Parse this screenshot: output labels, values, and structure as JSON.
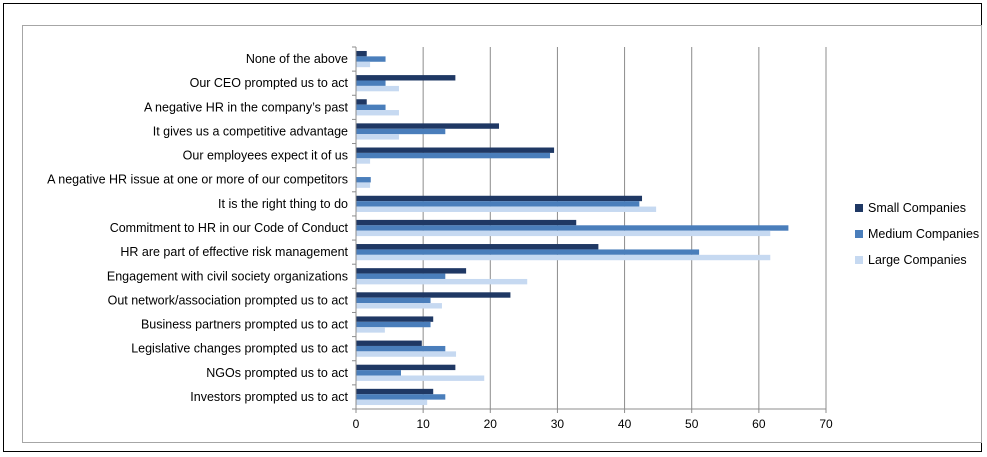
{
  "chart_data": {
    "type": "bar",
    "orientation": "horizontal",
    "title": "",
    "xlabel": "",
    "ylabel": "",
    "xlim": [
      0,
      70
    ],
    "xticks": [
      0,
      10,
      20,
      30,
      40,
      50,
      60,
      70
    ],
    "grid": "vertical",
    "legend_position": "right",
    "categories": [
      "None of the above",
      "Our CEO prompted us to act",
      "A negative HR in the company’s past",
      "It gives us a competitive advantage",
      "Our employees expect it of us",
      "A negative HR issue at one or more of our competitors",
      "It is the right thing to do",
      "Commitment to HR in our Code of Conduct",
      "HR are part of effective risk management",
      "Engagement with civil society organizations",
      "Out network/association prompted us to act",
      "Business partners prompted us to act",
      "Legislative changes prompted us to act",
      "NGOs prompted us to act",
      "Investors prompted us to act"
    ],
    "series": [
      {
        "name": "Small Companies",
        "color": "#1f3864",
        "values": [
          1.6,
          14.8,
          1.6,
          21.3,
          29.5,
          0,
          42.6,
          32.8,
          36.1,
          16.4,
          23.0,
          11.5,
          9.8,
          14.8,
          11.5
        ]
      },
      {
        "name": "Medium Companies",
        "color": "#4a7ebb",
        "values": [
          4.4,
          4.4,
          4.4,
          13.3,
          28.9,
          2.2,
          42.2,
          64.4,
          51.1,
          13.3,
          11.1,
          11.1,
          13.3,
          6.7,
          13.3
        ]
      },
      {
        "name": "Large Companies",
        "color": "#c6d9f1",
        "values": [
          2.1,
          6.4,
          6.4,
          6.4,
          2.1,
          2.1,
          44.7,
          61.7,
          61.7,
          25.5,
          12.8,
          4.3,
          14.9,
          19.1,
          10.6
        ]
      }
    ]
  }
}
